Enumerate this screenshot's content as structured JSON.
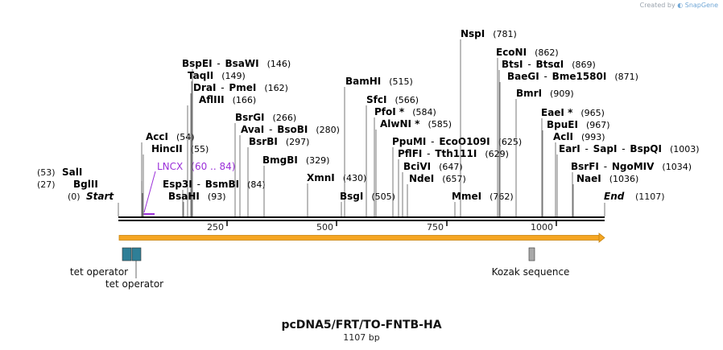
{
  "credit": {
    "prefix": "Created by",
    "brand": "SnapGene"
  },
  "title": "pcDNA5/FRT/TO-FNTB-HA",
  "subtitle": "1107 bp",
  "colors": {
    "orf": "#f5a623",
    "orf_border": "#c88410",
    "tet_operator": "#2f7f97",
    "kozak": "#a9a9a9",
    "primer": "#9b30d9"
  },
  "axis": {
    "ticks": [
      {
        "label": "250"
      },
      {
        "label": "500"
      },
      {
        "label": "750"
      },
      {
        "label": "1000"
      }
    ]
  },
  "ends": {
    "start": {
      "pos": "(0)",
      "label": "Start"
    },
    "end": {
      "label": "End",
      "pos": "(1107)"
    }
  },
  "sites": [
    {
      "parts": [
        "SalI"
      ],
      "pos": "(53)",
      "side": "left"
    },
    {
      "parts": [
        "BglII"
      ],
      "pos": "(27)",
      "side": "left"
    },
    {
      "parts": [
        "AccI"
      ],
      "pos": "(54)"
    },
    {
      "parts": [
        "HincII"
      ],
      "pos": "(55)"
    },
    {
      "parts": [
        "BspEI",
        "BsaWI"
      ],
      "pos": "(146)"
    },
    {
      "parts": [
        "TaqII"
      ],
      "pos": "(149)"
    },
    {
      "parts": [
        "DraI",
        "PmeI"
      ],
      "pos": "(162)"
    },
    {
      "parts": [
        "AflIII"
      ],
      "pos": "(166)"
    },
    {
      "parts": [
        "Esp3I",
        "BsmBI"
      ],
      "pos": "(84)"
    },
    {
      "parts": [
        "BsaHI"
      ],
      "pos": "(93)"
    },
    {
      "parts": [
        "BsrGI"
      ],
      "pos": "(266)"
    },
    {
      "parts": [
        "AvaI",
        "BsoBI"
      ],
      "pos": "(280)"
    },
    {
      "parts": [
        "BsrBI"
      ],
      "pos": "(297)"
    },
    {
      "parts": [
        "BmgBI"
      ],
      "pos": "(329)"
    },
    {
      "parts": [
        "XmnI"
      ],
      "pos": "(430)"
    },
    {
      "parts": [
        "BamHI"
      ],
      "pos": "(515)"
    },
    {
      "parts": [
        "SfcI"
      ],
      "pos": "(566)"
    },
    {
      "parts": [
        "PfoI *"
      ],
      "pos": "(584)"
    },
    {
      "parts": [
        "AlwNI *"
      ],
      "pos": "(585)"
    },
    {
      "parts": [
        "BsgI"
      ],
      "pos": "(505)"
    },
    {
      "parts": [
        "PpuMI",
        "EcoO109I"
      ],
      "pos": "(625)"
    },
    {
      "parts": [
        "PflFI",
        "Tth111I"
      ],
      "pos": "(629)"
    },
    {
      "parts": [
        "BciVI"
      ],
      "pos": "(647)"
    },
    {
      "parts": [
        "NdeI"
      ],
      "pos": "(657)"
    },
    {
      "parts": [
        "MmeI"
      ],
      "pos": "(762)"
    },
    {
      "parts": [
        "NspI"
      ],
      "pos": "(781)"
    },
    {
      "parts": [
        "EcoNI"
      ],
      "pos": "(862)"
    },
    {
      "parts": [
        "BtsI",
        "BtsαI"
      ],
      "pos": "(869)"
    },
    {
      "parts": [
        "BaeGI",
        "Bme1580I"
      ],
      "pos": "(871)"
    },
    {
      "parts": [
        "BmrI"
      ],
      "pos": "(909)"
    },
    {
      "parts": [
        "EaeI *"
      ],
      "pos": "(965)"
    },
    {
      "parts": [
        "BpuEI"
      ],
      "pos": "(967)"
    },
    {
      "parts": [
        "AclI"
      ],
      "pos": "(993)"
    },
    {
      "parts": [
        "EarI",
        "SapI",
        "BspQI"
      ],
      "pos": "(1003)"
    },
    {
      "parts": [
        "BsrFI",
        "NgoMIV"
      ],
      "pos": "(1034)"
    },
    {
      "parts": [
        "NaeI"
      ],
      "pos": "(1036)"
    }
  ],
  "primer": {
    "name": "LNCX",
    "range": "(60 .. 84)"
  },
  "features": [
    {
      "label": "tet operator"
    },
    {
      "label": "tet operator"
    },
    {
      "label": "Kozak sequence"
    }
  ]
}
